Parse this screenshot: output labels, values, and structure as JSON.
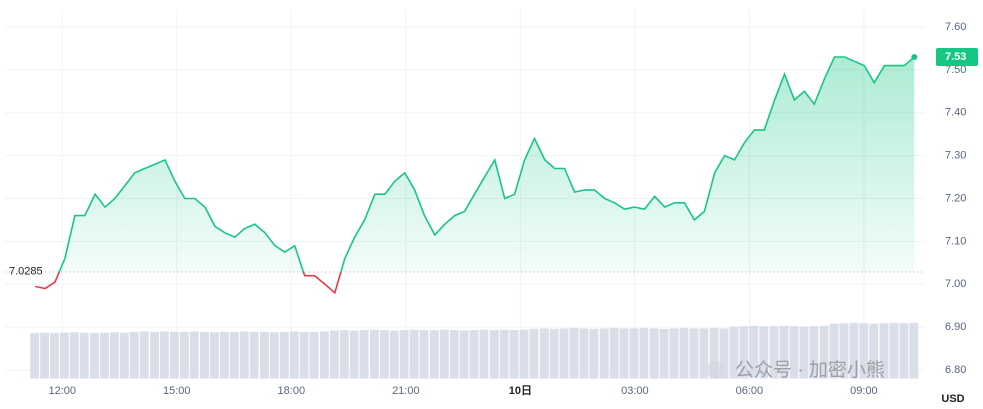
{
  "chart_data": {
    "type": "line",
    "color": "#16c784",
    "down_color": "#ea3943",
    "volume_color": "#cfd6e4",
    "baseline": 7.0285,
    "current_price": 7.53,
    "currency": "USD",
    "watermark": "公众号 · 加密小熊",
    "x": [
      11.29,
      11.55,
      11.81,
      12.07,
      12.33,
      12.59,
      12.86,
      13.12,
      13.38,
      13.64,
      13.9,
      14.16,
      14.43,
      14.69,
      14.95,
      15.21,
      15.47,
      15.74,
      16.0,
      16.26,
      16.52,
      16.78,
      17.04,
      17.31,
      17.57,
      17.83,
      18.09,
      18.35,
      18.61,
      18.88,
      19.14,
      19.4,
      19.66,
      19.92,
      20.19,
      20.45,
      20.71,
      20.97,
      21.23,
      21.49,
      21.76,
      22.02,
      22.28,
      22.54,
      22.8,
      23.06,
      23.33,
      23.59,
      23.85,
      24.11,
      24.37,
      24.64,
      24.9,
      25.16,
      25.42,
      25.68,
      25.94,
      26.21,
      26.47,
      26.73,
      26.99,
      27.25,
      27.52,
      27.78,
      28.04,
      28.3,
      28.56,
      28.82,
      29.09,
      29.35,
      29.61,
      29.87,
      30.13,
      30.39,
      30.66,
      30.92,
      31.18,
      31.44,
      31.7,
      31.97,
      32.23,
      32.49,
      32.75,
      33.01,
      33.27,
      33.54,
      33.8,
      34.06,
      34.32
    ],
    "values": [
      6.995,
      6.99,
      7.005,
      7.06,
      7.16,
      7.16,
      7.21,
      7.18,
      7.2,
      7.23,
      7.26,
      7.27,
      7.28,
      7.29,
      7.24,
      7.2,
      7.2,
      7.18,
      7.135,
      7.12,
      7.11,
      7.13,
      7.14,
      7.12,
      7.09,
      7.075,
      7.09,
      7.02,
      7.02,
      7.0,
      6.98,
      7.06,
      7.11,
      7.15,
      7.21,
      7.21,
      7.24,
      7.26,
      7.22,
      7.16,
      7.115,
      7.14,
      7.16,
      7.17,
      7.21,
      7.25,
      7.29,
      7.2,
      7.21,
      7.29,
      7.34,
      7.29,
      7.27,
      7.27,
      7.215,
      7.22,
      7.22,
      7.2,
      7.19,
      7.175,
      7.18,
      7.175,
      7.205,
      7.18,
      7.19,
      7.19,
      7.15,
      7.17,
      7.26,
      7.3,
      7.29,
      7.33,
      7.36,
      7.36,
      7.43,
      7.49,
      7.43,
      7.45,
      7.42,
      7.48,
      7.53,
      7.53,
      7.52,
      7.51,
      7.47,
      7.51,
      7.51,
      7.51,
      7.53
    ],
    "volume": [
      6.886,
      6.887,
      6.886,
      6.887,
      6.888,
      6.887,
      6.886,
      6.887,
      6.888,
      6.887,
      6.889,
      6.89,
      6.889,
      6.89,
      6.889,
      6.889,
      6.89,
      6.889,
      6.888,
      6.889,
      6.889,
      6.89,
      6.889,
      6.889,
      6.888,
      6.889,
      6.89,
      6.889,
      6.889,
      6.89,
      6.892,
      6.893,
      6.892,
      6.893,
      6.894,
      6.893,
      6.892,
      6.893,
      6.894,
      6.893,
      6.893,
      6.894,
      6.893,
      6.892,
      6.893,
      6.894,
      6.893,
      6.894,
      6.893,
      6.894,
      6.896,
      6.897,
      6.896,
      6.897,
      6.898,
      6.897,
      6.896,
      6.897,
      6.898,
      6.897,
      6.897,
      6.898,
      6.897,
      6.896,
      6.897,
      6.898,
      6.897,
      6.897,
      6.898,
      6.897,
      6.901,
      6.902,
      6.903,
      6.902,
      6.902,
      6.903,
      6.902,
      6.901,
      6.902,
      6.903,
      6.908,
      6.909,
      6.91,
      6.909,
      6.908,
      6.909,
      6.91,
      6.909,
      6.91
    ],
    "xlim": [
      10.5,
      34.6
    ],
    "xticks": [
      {
        "value": 12,
        "label": "12:00"
      },
      {
        "value": 15,
        "label": "15:00"
      },
      {
        "value": 18,
        "label": "18:00"
      },
      {
        "value": 21,
        "label": "21:00"
      },
      {
        "value": 24,
        "label": "10日"
      },
      {
        "value": 27,
        "label": "03:00"
      },
      {
        "value": 30,
        "label": "06:00"
      },
      {
        "value": 33,
        "label": "09:00"
      }
    ],
    "ylim": [
      6.78,
      7.64
    ],
    "yticks": [
      {
        "value": 6.8,
        "label": "6.80"
      },
      {
        "value": 6.9,
        "label": "6.90"
      },
      {
        "value": 7.0,
        "label": "7.00"
      },
      {
        "value": 7.1,
        "label": "7.10"
      },
      {
        "value": 7.2,
        "label": "7.20"
      },
      {
        "value": 7.3,
        "label": "7.30"
      },
      {
        "value": 7.4,
        "label": "7.40"
      },
      {
        "value": 7.5,
        "label": "7.50"
      },
      {
        "value": 7.6,
        "label": "7.60"
      }
    ],
    "grid": true
  }
}
